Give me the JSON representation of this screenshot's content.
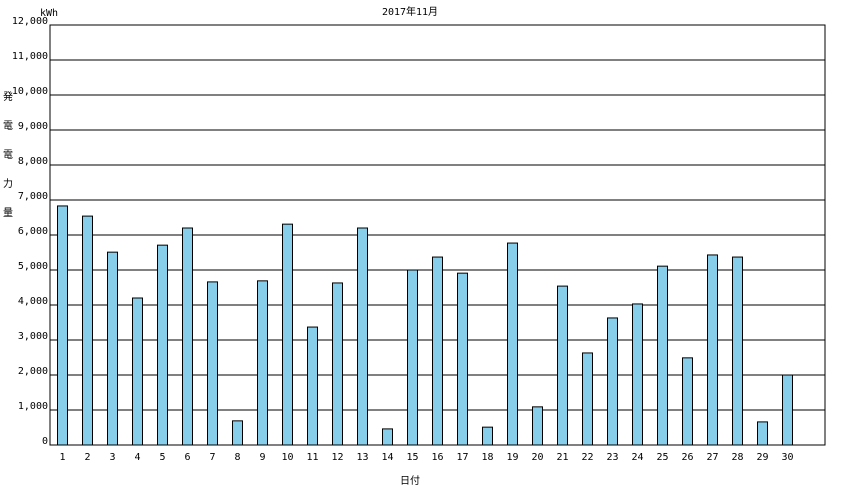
{
  "chart_data": {
    "type": "bar",
    "title": "2017年11月",
    "y_unit": "kWh",
    "y_label": "発電電力量",
    "x_label": "日付",
    "categories": [
      "1",
      "2",
      "3",
      "4",
      "5",
      "6",
      "7",
      "8",
      "9",
      "10",
      "11",
      "12",
      "13",
      "14",
      "15",
      "16",
      "17",
      "18",
      "19",
      "20",
      "21",
      "22",
      "23",
      "24",
      "25",
      "26",
      "27",
      "28",
      "29",
      "30"
    ],
    "values": [
      6830,
      6540,
      5510,
      4200,
      5710,
      6200,
      4660,
      690,
      4690,
      6310,
      3370,
      4630,
      6200,
      460,
      5000,
      5370,
      4910,
      510,
      5770,
      1090,
      4540,
      2630,
      3630,
      4030,
      5110,
      2490,
      5430,
      5370,
      660,
      2000
    ],
    "color": "#87ceeb",
    "ylim": [
      0,
      12000
    ],
    "yticks": [
      0,
      {
        "value": 1000,
        "label": "1,000"
      },
      {
        "value": 2000,
        "label": "2,000"
      },
      {
        "value": 3000,
        "label": "3,000"
      },
      {
        "value": 4000,
        "label": "4,000"
      },
      {
        "value": 5000,
        "label": "5,000"
      },
      {
        "value": 6000,
        "label": "6,000"
      },
      {
        "value": 7000,
        "label": "7,000"
      },
      {
        "value": 8000,
        "label": "8,000"
      },
      {
        "value": 9000,
        "label": "9,000"
      },
      {
        "value": 10000,
        "label": "10,000"
      },
      {
        "value": 11000,
        "label": "11,000"
      },
      {
        "value": 12000,
        "label": "12,000"
      }
    ],
    "grid": true
  }
}
